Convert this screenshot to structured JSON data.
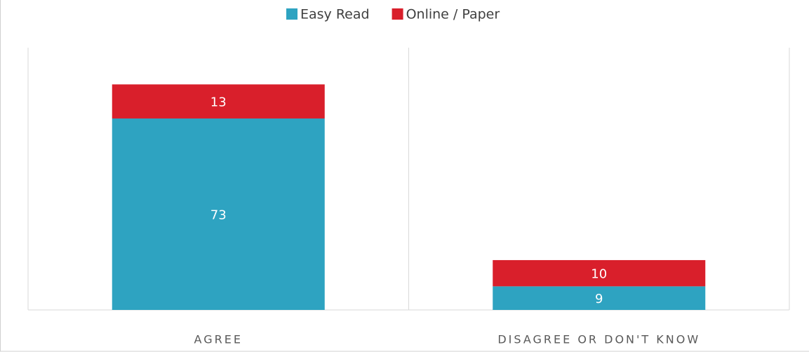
{
  "chart_data": {
    "type": "stacked_bar",
    "categories": [
      "AGREE",
      "DISAGREE OR DON'T KNOW"
    ],
    "series": [
      {
        "name": "Easy Read",
        "color": "#2ea3c1",
        "values": [
          73,
          9
        ]
      },
      {
        "name": "Online / Paper",
        "color": "#d91f2b",
        "values": [
          13,
          10
        ]
      }
    ],
    "ylim": [
      0,
      100
    ],
    "legend": "top"
  }
}
